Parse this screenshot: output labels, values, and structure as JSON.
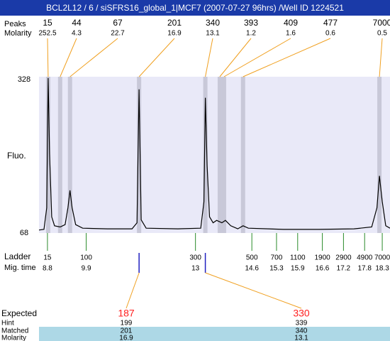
{
  "header": {
    "title": "BCL2L12 / 6 / siSFRS16_global_1|MCF7 (2007-07-27 96hrs) /Well ID 1224521"
  },
  "chart_data": {
    "type": "line",
    "ylabel": "Fluo.",
    "ylim": [
      68,
      328
    ],
    "yticks": [
      68,
      328
    ],
    "xlim": [
      8.56,
      18.52
    ],
    "trace": {
      "color": "#000000",
      "x": [
        8.56,
        8.7,
        8.78,
        8.82,
        8.86,
        8.92,
        9.0,
        9.16,
        9.3,
        9.38,
        9.44,
        9.5,
        9.6,
        9.8,
        10.5,
        11.2,
        11.34,
        11.4,
        11.46,
        11.6,
        12.5,
        13.15,
        13.24,
        13.28,
        13.33,
        13.4,
        13.5,
        13.6,
        13.75,
        13.85,
        14.0,
        14.2,
        14.35,
        14.5,
        15.5,
        16.5,
        17.5,
        18.0,
        18.15,
        18.22,
        18.3,
        18.4,
        18.52
      ],
      "y": [
        73,
        74,
        110,
        326,
        200,
        95,
        80,
        78,
        82,
        110,
        139,
        110,
        82,
        76,
        75,
        75,
        85,
        307,
        90,
        76,
        75,
        76,
        120,
        293,
        180,
        95,
        85,
        89,
        85,
        89,
        80,
        75,
        80,
        76,
        74,
        74,
        75,
        78,
        110,
        163,
        120,
        80,
        76
      ]
    },
    "peaks": {
      "size_label": "Peaks",
      "molarity_label": "Molarity",
      "sizes": [
        15,
        44,
        67,
        201,
        340,
        393,
        409,
        477,
        7000
      ],
      "molarity": [
        252.5,
        4.3,
        22.7,
        16.9,
        13.1,
        1.2,
        1.6,
        0.6,
        0.5
      ],
      "times": [
        8.82,
        9.16,
        9.44,
        11.4,
        13.28,
        13.69,
        13.81,
        14.35,
        18.22
      ]
    },
    "ladder": {
      "label": "Ladder",
      "time_label": "Mig. time",
      "sizes": [
        15,
        100,
        300,
        500,
        700,
        1100,
        1900,
        2900,
        4900,
        7000
      ],
      "times": [
        8.8,
        9.9,
        13,
        14.6,
        15.3,
        15.9,
        16.6,
        17.2,
        17.8,
        18.3
      ]
    },
    "expected": {
      "labels": [
        "Expected",
        "Hint",
        "Matched",
        "Molarity"
      ],
      "expected": [
        187,
        330
      ],
      "hint": [
        199,
        339
      ],
      "matched": [
        201,
        340
      ],
      "molarity": [
        16.9,
        13.1
      ]
    }
  }
}
